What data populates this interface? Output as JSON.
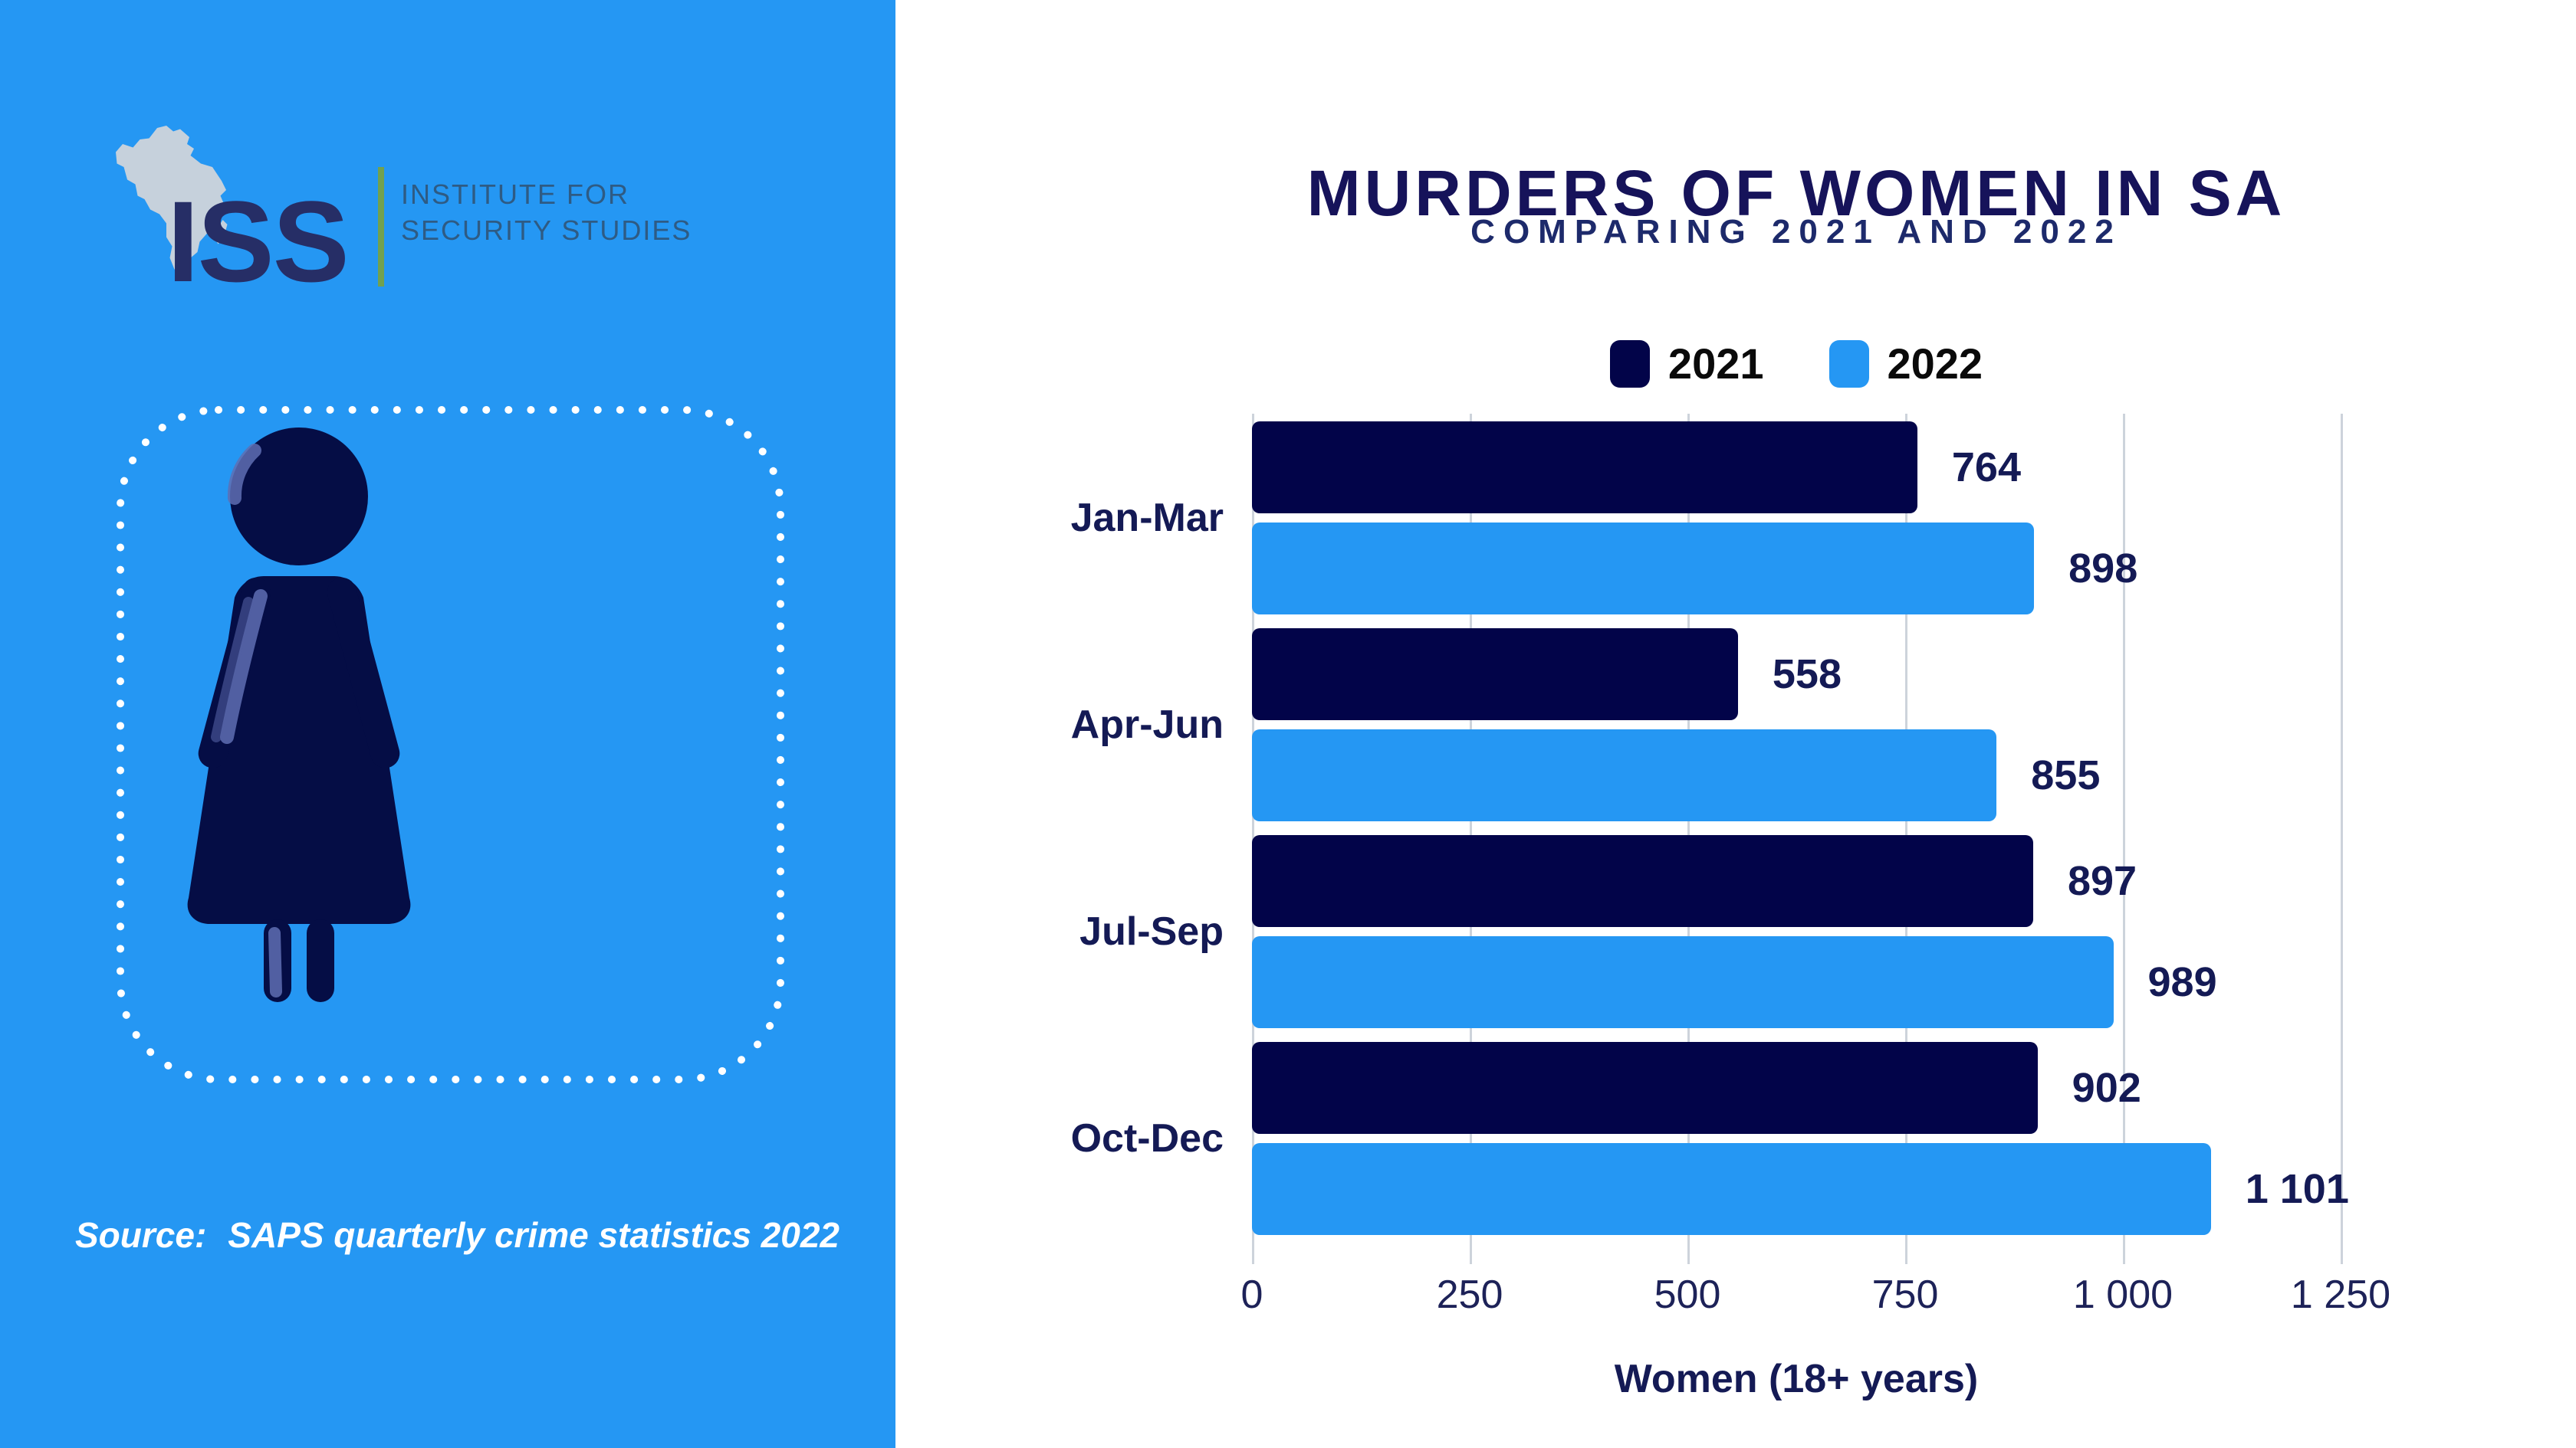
{
  "left_panel": {
    "logo": {
      "iss": "ISS",
      "line1": "INSTITUTE FOR",
      "line2": "SECURITY STUDIES"
    },
    "source_label": "Source:",
    "source_text": "SAPS quarterly crime statistics 2022"
  },
  "chart": {
    "title": "MURDERS OF WOMEN IN SA",
    "subtitle": "COMPARING 2021 AND 2022",
    "xlabel": "Women (18+ years)"
  },
  "chart_data": {
    "type": "bar",
    "orientation": "horizontal",
    "title": "MURDERS OF WOMEN IN SA",
    "subtitle": "COMPARING 2021 AND 2022",
    "xlabel": "Women (18+ years)",
    "categories": [
      "Jan-Mar",
      "Apr-Jun",
      "Jul-Sep",
      "Oct-Dec"
    ],
    "series": [
      {
        "name": "2021",
        "color": "#020449",
        "values": [
          764,
          558,
          897,
          902
        ],
        "labels": [
          "764",
          "558",
          "897",
          "902"
        ]
      },
      {
        "name": "2022",
        "color": "#2597F3",
        "values": [
          898,
          855,
          989,
          1101
        ],
        "labels": [
          "898",
          "855",
          "989",
          "1 101"
        ]
      }
    ],
    "xlim": [
      0,
      1250
    ],
    "ticks": [
      "0",
      "250",
      "500",
      "750",
      "1 000",
      "1 250"
    ],
    "grid": true,
    "legend_position": "top"
  },
  "colors": {
    "panel_blue": "#2597F3",
    "bar_navy": "#020449",
    "bar_blue": "#2597F3",
    "text_navy": "#141a55",
    "gridline": "#cdd3db",
    "figure_highlight": "#5f6eb3",
    "logo_green": "#71a14f",
    "logo_gray": "#d4d6da",
    "source_white": "#ffffff"
  }
}
